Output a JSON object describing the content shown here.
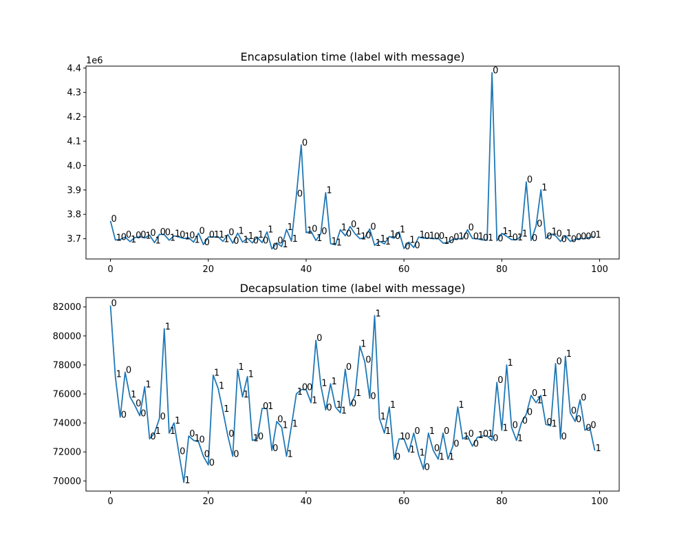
{
  "chart_data": [
    {
      "type": "line",
      "title": "Encapsulation time (label with message)",
      "xlabel": "",
      "ylabel": "",
      "offset_text": "1e6",
      "series_color": "#1f77b4",
      "xlim": [
        -5,
        104
      ],
      "ylim": [
        3.617,
        4.408
      ],
      "xticks": [
        0,
        20,
        40,
        60,
        80,
        100
      ],
      "yticks": [
        3.7,
        3.8,
        3.9,
        4.0,
        4.1,
        4.2,
        4.3,
        4.4
      ],
      "ytick_labels": [
        "3.7",
        "3.8",
        "3.9",
        "4.0",
        "4.1",
        "4.2",
        "4.3",
        "4.4"
      ],
      "grid": false,
      "x": [
        0,
        1,
        2,
        3,
        4,
        5,
        6,
        7,
        8,
        9,
        10,
        11,
        12,
        13,
        14,
        15,
        16,
        17,
        18,
        19,
        20,
        21,
        22,
        23,
        24,
        25,
        26,
        27,
        28,
        29,
        30,
        31,
        32,
        33,
        34,
        35,
        36,
        37,
        38,
        39,
        40,
        41,
        42,
        43,
        44,
        45,
        46,
        47,
        48,
        49,
        50,
        51,
        52,
        53,
        54,
        55,
        56,
        57,
        58,
        59,
        60,
        61,
        62,
        63,
        64,
        65,
        66,
        67,
        68,
        69,
        70,
        71,
        72,
        73,
        74,
        75,
        76,
        77,
        78,
        79,
        80,
        81,
        82,
        83,
        84,
        85,
        86,
        87,
        88,
        89,
        90,
        91,
        92,
        93,
        94,
        95,
        96,
        97,
        98,
        99
      ],
      "y": [
        3.773,
        3.695,
        3.697,
        3.707,
        3.688,
        3.705,
        3.708,
        3.703,
        3.715,
        3.684,
        3.718,
        3.717,
        3.694,
        3.712,
        3.707,
        3.701,
        3.704,
        3.686,
        3.723,
        3.676,
        3.707,
        3.707,
        3.708,
        3.689,
        3.717,
        3.682,
        3.723,
        3.686,
        3.702,
        3.683,
        3.707,
        3.684,
        3.728,
        3.658,
        3.683,
        3.668,
        3.738,
        3.69,
        3.876,
        4.085,
        3.725,
        3.731,
        3.693,
        3.721,
        3.889,
        3.68,
        3.675,
        3.737,
        3.712,
        3.75,
        3.72,
        3.7,
        3.705,
        3.74,
        3.673,
        3.69,
        3.679,
        3.709,
        3.702,
        3.728,
        3.66,
        3.686,
        3.664,
        3.707,
        3.702,
        3.703,
        3.7,
        3.702,
        3.682,
        3.685,
        3.697,
        3.7,
        3.7,
        3.737,
        3.701,
        3.7,
        3.695,
        3.694,
        4.381,
        3.692,
        3.722,
        3.71,
        3.696,
        3.696,
        3.711,
        3.933,
        3.693,
        3.752,
        3.901,
        3.701,
        3.72,
        3.712,
        3.689,
        3.713,
        3.689,
        3.697,
        3.701,
        3.7,
        3.706,
        3.707
      ],
      "labels": [
        "0",
        "1",
        "0",
        "0",
        "1",
        "0",
        "0",
        "1",
        "0",
        "1",
        "0",
        "0",
        "1",
        "1",
        "0",
        "1",
        "0",
        "1",
        "0",
        "0",
        "0",
        "1",
        "1",
        "1",
        "0",
        "0",
        "1",
        "1",
        "1",
        "0",
        "1",
        "0",
        "1",
        "0",
        "0",
        "1",
        "1",
        "1",
        "0",
        "0",
        "1",
        "0",
        "1",
        "0",
        "1",
        "1",
        "1",
        "1",
        "0",
        "0",
        "1",
        "1",
        "0",
        "0",
        "1",
        "1",
        "1",
        "1",
        "0",
        "1",
        "0",
        "1",
        "0",
        "1",
        "0",
        "1",
        "0",
        "0",
        "1",
        "0",
        "0",
        "1",
        "0",
        "0",
        "0",
        "1",
        "0",
        "1",
        "0",
        "0",
        "1",
        "1",
        "0",
        "1",
        "1",
        "0",
        "0",
        "0",
        "1",
        "0",
        "1",
        "0",
        "0",
        "1",
        "0",
        "0",
        "0",
        "0",
        "0",
        "1"
      ]
    },
    {
      "type": "line",
      "title": "Decapsulation time (label with message)",
      "xlabel": "",
      "ylabel": "",
      "series_color": "#1f77b4",
      "xlim": [
        -5,
        104
      ],
      "ylim": [
        69300,
        82650
      ],
      "xticks": [
        0,
        20,
        40,
        60,
        80,
        100
      ],
      "yticks": [
        70000,
        72000,
        74000,
        76000,
        78000,
        80000,
        82000
      ],
      "grid": false,
      "x": [
        0,
        1,
        2,
        3,
        4,
        5,
        6,
        7,
        8,
        9,
        10,
        11,
        12,
        13,
        14,
        15,
        16,
        17,
        18,
        19,
        20,
        21,
        22,
        23,
        24,
        25,
        26,
        27,
        28,
        29,
        30,
        31,
        32,
        33,
        34,
        35,
        36,
        37,
        38,
        39,
        40,
        41,
        42,
        43,
        44,
        45,
        46,
        47,
        48,
        49,
        50,
        51,
        52,
        53,
        54,
        55,
        56,
        57,
        58,
        59,
        60,
        61,
        62,
        63,
        64,
        65,
        66,
        67,
        68,
        69,
        70,
        71,
        72,
        73,
        74,
        75,
        76,
        77,
        78,
        79,
        80,
        81,
        82,
        83,
        84,
        85,
        86,
        87,
        88,
        89,
        90,
        91,
        92,
        93,
        94,
        95,
        96,
        97,
        98,
        99
      ],
      "y": [
        82100,
        77200,
        74400,
        77500,
        75800,
        75200,
        74500,
        76500,
        72900,
        73300,
        74300,
        80500,
        73300,
        74000,
        71900,
        69900,
        73100,
        72800,
        72700,
        71700,
        71100,
        77300,
        76400,
        74800,
        73100,
        71700,
        77700,
        75800,
        77200,
        72800,
        72900,
        75000,
        75000,
        72100,
        74100,
        73700,
        71700,
        73800,
        76000,
        76300,
        76300,
        75400,
        79700,
        76600,
        74900,
        76700,
        75100,
        74700,
        77700,
        75200,
        75900,
        79300,
        78200,
        75700,
        81400,
        74300,
        73300,
        75100,
        71500,
        72900,
        72900,
        72000,
        73300,
        71800,
        70800,
        73300,
        72100,
        71500,
        73300,
        71500,
        72400,
        75100,
        72900,
        73100,
        72400,
        73000,
        73100,
        73100,
        72800,
        76800,
        73500,
        78000,
        73700,
        72800,
        74000,
        74600,
        75900,
        75400,
        75900,
        73900,
        73800,
        78100,
        72900,
        78600,
        74700,
        74100,
        75600,
        73500,
        73700,
        72100
      ],
      "labels": [
        "0",
        "1",
        "0",
        "0",
        "1",
        "0",
        "0",
        "1",
        "0",
        "1",
        "0",
        "1",
        "1",
        "1",
        "0",
        "1",
        "0",
        "1",
        "0",
        "0",
        "0",
        "1",
        "1",
        "1",
        "0",
        "0",
        "1",
        "1",
        "1",
        "1",
        "0",
        "0",
        "1",
        "0",
        "0",
        "1",
        "1",
        "1",
        "1",
        "0",
        "0",
        "1",
        "0",
        "1",
        "0",
        "1",
        "1",
        "1",
        "0",
        "0",
        "1",
        "1",
        "0",
        "0",
        "1",
        "1",
        "1",
        "1",
        "0",
        "1",
        "0",
        "1",
        "0",
        "1",
        "0",
        "1",
        "0",
        "1",
        "0",
        "1",
        "0",
        "1",
        "1",
        "0",
        "0",
        "1",
        "0",
        "1",
        "0",
        "0",
        "1",
        "1",
        "0",
        "1",
        "0",
        "0",
        "0",
        "1",
        "1",
        "0",
        "1",
        "0",
        "0",
        "1",
        "0",
        "0",
        "0",
        "0",
        "0",
        "1"
      ]
    }
  ]
}
